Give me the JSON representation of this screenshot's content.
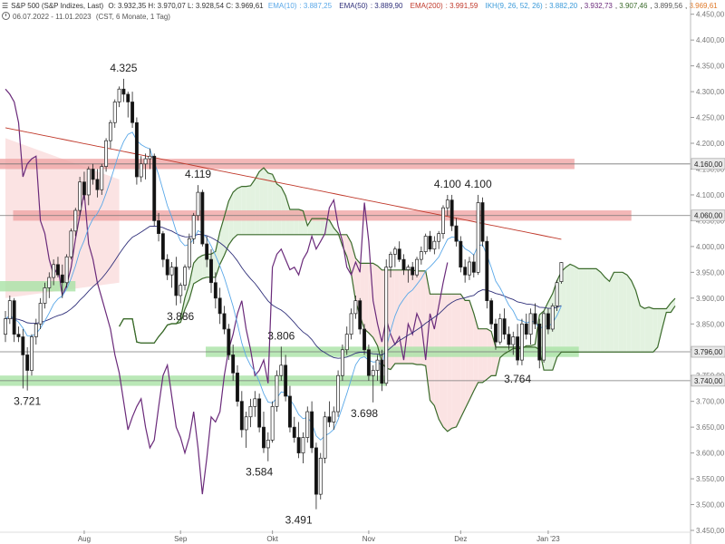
{
  "header": {
    "instrument": "S&P 500 (S&P Indizes, Last)",
    "ohlc": "O: 3.932,35  H: 3.970,07  L: 3.928,54  C: 3.969,61",
    "ema10": {
      "label": "EMA(10)",
      "value": "3.887,25",
      "color": "#5aa8e8"
    },
    "ema50": {
      "label": "EMA(50)",
      "value": "3.889,90",
      "color": "#30307a"
    },
    "ema200": {
      "label": "EMA(200)",
      "value": "3.991,59",
      "color": "#c0392b"
    },
    "ikh": {
      "label": "IKH(9, 26, 52, 26)",
      "values": [
        "3.882,20",
        "3.932,73",
        "3.907,46",
        "3.899,56"
      ],
      "last": "3.969,61",
      "colors": [
        "#3a9ad9",
        "#6a2a7a",
        "#3a6a2a",
        "#555555"
      ],
      "last_color": "#e07a2a"
    },
    "period": "06.07.2022 - 11.01.2023",
    "settings": "(CST, 6 Monate, 1 Tag)"
  },
  "chart_data": {
    "type": "candlestick",
    "title": "S&P 500 (S&P Indizes, Last)",
    "ylim": [
      3450,
      4460
    ],
    "yticks": [
      3450,
      3500,
      3550,
      3600,
      3650,
      3700,
      3750,
      3800,
      3850,
      3900,
      3950,
      4000,
      4050,
      4100,
      4150,
      4200,
      4250,
      4300,
      4350,
      4400,
      4450
    ],
    "ytick_labels": [
      "3.450,00",
      "3.500,00",
      "3.550,00",
      "3.600,00",
      "3.650,00",
      "3.700,00",
      "3.750,00",
      "3.800,00",
      "3.850,00",
      "3.900,00",
      "3.950,00",
      "4.000,00",
      "4.050,00",
      "4.100,00",
      "4.150,00",
      "4.200,00",
      "4.250,00",
      "4.300,00",
      "4.350,00",
      "4.400,00",
      "4.450,00"
    ],
    "x_months": [
      {
        "label": "Aug",
        "day": 18
      },
      {
        "label": "Sep",
        "day": 40
      },
      {
        "label": "Okt",
        "day": 61
      },
      {
        "label": "Nov",
        "day": 83
      },
      {
        "label": "Dez",
        "day": 104
      },
      {
        "label": "Jan '23",
        "day": 124
      }
    ],
    "candles": [
      [
        3830,
        3875,
        3815,
        3860
      ],
      [
        3860,
        3905,
        3850,
        3895
      ],
      [
        3895,
        3900,
        3815,
        3830
      ],
      [
        3830,
        3845,
        3815,
        3825
      ],
      [
        3825,
        3840,
        3725,
        3790
      ],
      [
        3790,
        3805,
        3721,
        3760
      ],
      [
        3760,
        3830,
        3750,
        3825
      ],
      [
        3825,
        3860,
        3810,
        3850
      ],
      [
        3850,
        3900,
        3840,
        3890
      ],
      [
        3890,
        3930,
        3880,
        3920
      ],
      [
        3920,
        3950,
        3900,
        3940
      ],
      [
        3940,
        3975,
        3925,
        3965
      ],
      [
        3965,
        3980,
        3940,
        3945
      ],
      [
        3945,
        3965,
        3900,
        3930
      ],
      [
        3930,
        3985,
        3920,
        3980
      ],
      [
        3980,
        4035,
        3975,
        4030
      ],
      [
        4030,
        4075,
        4020,
        4070
      ],
      [
        4070,
        4135,
        4060,
        4125
      ],
      [
        4125,
        4145,
        4090,
        4100
      ],
      [
        4100,
        4155,
        4080,
        4150
      ],
      [
        4150,
        4160,
        4120,
        4130
      ],
      [
        4130,
        4150,
        4095,
        4110
      ],
      [
        4110,
        4160,
        4100,
        4155
      ],
      [
        4155,
        4210,
        4145,
        4205
      ],
      [
        4205,
        4245,
        4190,
        4240
      ],
      [
        4240,
        4285,
        4230,
        4280
      ],
      [
        4280,
        4310,
        4270,
        4305
      ],
      [
        4305,
        4325,
        4280,
        4295
      ],
      [
        4295,
        4300,
        4250,
        4280
      ],
      [
        4280,
        4300,
        4230,
        4240
      ],
      [
        4240,
        4250,
        4120,
        4135
      ],
      [
        4135,
        4175,
        4125,
        4160
      ],
      [
        4160,
        4180,
        4130,
        4170
      ],
      [
        4170,
        4190,
        4150,
        4175
      ],
      [
        4175,
        4180,
        4040,
        4050
      ],
      [
        4050,
        4065,
        4010,
        4025
      ],
      [
        4025,
        4030,
        3960,
        3975
      ],
      [
        3975,
        3985,
        3935,
        3945
      ],
      [
        3945,
        3970,
        3920,
        3960
      ],
      [
        3960,
        3980,
        3886,
        3905
      ],
      [
        3905,
        3930,
        3890,
        3925
      ],
      [
        3925,
        3965,
        3915,
        3960
      ],
      [
        3960,
        4025,
        3955,
        4015
      ],
      [
        4015,
        4065,
        4005,
        4060
      ],
      [
        4060,
        4119,
        4050,
        4105
      ],
      [
        4105,
        4110,
        4000,
        4005
      ],
      [
        4005,
        4020,
        3960,
        3975
      ],
      [
        3975,
        3995,
        3910,
        3930
      ],
      [
        3930,
        3950,
        3880,
        3900
      ],
      [
        3900,
        3920,
        3850,
        3870
      ],
      [
        3870,
        3885,
        3830,
        3840
      ],
      [
        3840,
        3850,
        3780,
        3790
      ],
      [
        3790,
        3810,
        3740,
        3755
      ],
      [
        3755,
        3770,
        3690,
        3700
      ],
      [
        3700,
        3720,
        3630,
        3645
      ],
      [
        3645,
        3680,
        3610,
        3670
      ],
      [
        3670,
        3705,
        3650,
        3690
      ],
      [
        3690,
        3720,
        3670,
        3705
      ],
      [
        3705,
        3715,
        3640,
        3650
      ],
      [
        3650,
        3680,
        3600,
        3610
      ],
      [
        3610,
        3640,
        3584,
        3625
      ],
      [
        3625,
        3700,
        3620,
        3690
      ],
      [
        3690,
        3760,
        3680,
        3750
      ],
      [
        3750,
        3806,
        3740,
        3770
      ],
      [
        3770,
        3790,
        3700,
        3710
      ],
      [
        3710,
        3730,
        3640,
        3650
      ],
      [
        3650,
        3670,
        3620,
        3630
      ],
      [
        3630,
        3660,
        3590,
        3600
      ],
      [
        3600,
        3640,
        3580,
        3630
      ],
      [
        3630,
        3690,
        3620,
        3680
      ],
      [
        3680,
        3700,
        3600,
        3610
      ],
      [
        3610,
        3620,
        3491,
        3520
      ],
      [
        3520,
        3600,
        3510,
        3590
      ],
      [
        3590,
        3680,
        3580,
        3670
      ],
      [
        3670,
        3700,
        3650,
        3660
      ],
      [
        3660,
        3690,
        3645,
        3680
      ],
      [
        3680,
        3760,
        3670,
        3750
      ],
      [
        3750,
        3810,
        3740,
        3800
      ],
      [
        3800,
        3845,
        3790,
        3830
      ],
      [
        3830,
        3880,
        3820,
        3870
      ],
      [
        3870,
        3905,
        3860,
        3895
      ],
      [
        3895,
        3900,
        3830,
        3840
      ],
      [
        3840,
        3850,
        3790,
        3800
      ],
      [
        3800,
        3810,
        3740,
        3750
      ],
      [
        3750,
        3770,
        3698,
        3760
      ],
      [
        3760,
        3790,
        3740,
        3780
      ],
      [
        3780,
        3800,
        3720,
        3735
      ],
      [
        3735,
        3975,
        3730,
        3960
      ],
      [
        3960,
        3990,
        3940,
        3985
      ],
      [
        3985,
        4000,
        3960,
        3995
      ],
      [
        3995,
        4010,
        3970,
        3975
      ],
      [
        3975,
        3985,
        3945,
        3955
      ],
      [
        3955,
        3965,
        3930,
        3960
      ],
      [
        3960,
        3970,
        3935,
        3945
      ],
      [
        3945,
        3980,
        3940,
        3975
      ],
      [
        3975,
        4000,
        3965,
        3990
      ],
      [
        3990,
        4025,
        3985,
        4020
      ],
      [
        4020,
        4030,
        3990,
        3995
      ],
      [
        3995,
        4020,
        3985,
        4010
      ],
      [
        4010,
        4030,
        3995,
        4025
      ],
      [
        4025,
        4080,
        4015,
        4075
      ],
      [
        4075,
        4100,
        4060,
        4090
      ],
      [
        4090,
        4100,
        4030,
        4040
      ],
      [
        4040,
        4055,
        4000,
        4010
      ],
      [
        4010,
        4020,
        3950,
        3960
      ],
      [
        3960,
        3975,
        3930,
        3945
      ],
      [
        3945,
        3980,
        3935,
        3970
      ],
      [
        3970,
        3985,
        3940,
        3950
      ],
      [
        3950,
        4100,
        3945,
        4085
      ],
      [
        4085,
        4095,
        4000,
        4010
      ],
      [
        4010,
        4020,
        3880,
        3895
      ],
      [
        3895,
        3900,
        3840,
        3850
      ],
      [
        3850,
        3860,
        3800,
        3815
      ],
      [
        3815,
        3870,
        3810,
        3860
      ],
      [
        3860,
        3880,
        3820,
        3830
      ],
      [
        3830,
        3845,
        3800,
        3810
      ],
      [
        3810,
        3835,
        3790,
        3825
      ],
      [
        3825,
        3850,
        3770,
        3780
      ],
      [
        3780,
        3860,
        3770,
        3850
      ],
      [
        3850,
        3870,
        3820,
        3830
      ],
      [
        3830,
        3880,
        3810,
        3870
      ],
      [
        3870,
        3890,
        3840,
        3850
      ],
      [
        3850,
        3860,
        3764,
        3780
      ],
      [
        3780,
        3875,
        3775,
        3870
      ],
      [
        3870,
        3880,
        3830,
        3840
      ],
      [
        3840,
        3890,
        3835,
        3885
      ],
      [
        3885,
        3935,
        3875,
        3930
      ],
      [
        3932,
        3970,
        3928,
        3969
      ]
    ],
    "levels": [
      {
        "value": 4160,
        "label": "4.160,00",
        "zone": [
          4150,
          4170
        ],
        "from_day": 0,
        "to_day": 130
      },
      {
        "value": 4060,
        "label": "4.060,00",
        "zone": [
          4050,
          4070
        ],
        "from_day": 3,
        "to_day": 143
      },
      {
        "value": 3796,
        "label": "3.796,00",
        "zone": [
          3786,
          3806
        ],
        "from_day": 47,
        "to_day": 131
      },
      {
        "value": 3740,
        "label": "3.740,00",
        "zone": [
          3730,
          3750
        ],
        "from_day": 0,
        "to_day": 87
      }
    ],
    "extra_zone": {
      "range": [
        3913,
        3933
      ],
      "from_day": 0,
      "to_day": 16
    },
    "annotations": [
      {
        "text": "4.325",
        "day": 27,
        "value": 4325
      },
      {
        "text": "4.119",
        "day": 44,
        "value": 4119
      },
      {
        "text": "3.886",
        "day": 40,
        "value": 3886
      },
      {
        "text": "3.806",
        "day": 63,
        "value": 3806
      },
      {
        "text": "3.721",
        "day": 5,
        "value": 3721
      },
      {
        "text": "3.584",
        "day": 58,
        "value": 3584
      },
      {
        "text": "3.491",
        "day": 67,
        "value": 3491
      },
      {
        "text": "3.698",
        "day": 82,
        "value": 3698
      },
      {
        "text": "4.100",
        "day": 101,
        "value": 4100
      },
      {
        "text": "4.100",
        "day": 108,
        "value": 4100
      },
      {
        "text": "3.764",
        "day": 117,
        "value": 3764
      }
    ],
    "series_colors": {
      "ema10": "#5aa8e8",
      "ema50": "#30307a",
      "ema200": "#c0392b",
      "senkou_a": "#3a6a2a",
      "chikou": "#6a2a7a",
      "cloud_bull": "#e3f2e0",
      "cloud_bear": "#fbe3e3",
      "zone_red": "#f0a5a5",
      "zone_green": "#a9e2a5"
    }
  }
}
